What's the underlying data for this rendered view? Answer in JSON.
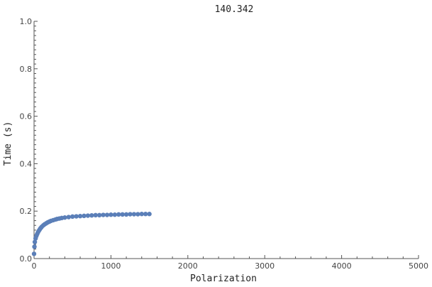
{
  "chart_data": {
    "type": "scatter",
    "title": "140.342",
    "xlabel": "Polarization",
    "ylabel": "Time (s)",
    "xlim": [
      0,
      5000
    ],
    "ylim": [
      0,
      1.0
    ],
    "x_ticks": [
      0,
      1000,
      2000,
      3000,
      4000,
      5000
    ],
    "y_ticks": [
      0.0,
      0.2,
      0.4,
      0.6,
      0.8,
      1.0
    ],
    "x_tick_labels": [
      "0",
      "1000",
      "2000",
      "3000",
      "4000",
      "5000"
    ],
    "y_tick_labels": [
      "0.0",
      "0.2",
      "0.4",
      "0.6",
      "0.8",
      "1.0"
    ],
    "grid": false,
    "marker_color": "#5b7fb8",
    "series": [
      {
        "x": [
          0,
          5,
          10,
          20,
          30,
          40,
          50,
          60,
          70,
          80,
          90,
          100,
          120,
          140,
          160,
          180,
          200,
          220,
          250,
          280,
          300,
          330,
          360,
          400,
          450,
          500,
          550,
          600,
          650,
          700,
          750,
          800,
          850,
          900,
          950,
          1000,
          1050,
          1100,
          1150,
          1200,
          1250,
          1300,
          1350,
          1400,
          1450,
          1500
        ],
        "y": [
          0.02,
          0.05,
          0.07,
          0.085,
          0.095,
          0.103,
          0.11,
          0.116,
          0.121,
          0.126,
          0.13,
          0.134,
          0.14,
          0.145,
          0.149,
          0.153,
          0.156,
          0.159,
          0.162,
          0.165,
          0.167,
          0.169,
          0.171,
          0.173,
          0.175,
          0.177,
          0.178,
          0.179,
          0.18,
          0.181,
          0.182,
          0.183,
          0.183,
          0.184,
          0.184,
          0.185,
          0.185,
          0.186,
          0.186,
          0.186,
          0.187,
          0.187,
          0.187,
          0.188,
          0.188,
          0.188
        ]
      }
    ]
  }
}
